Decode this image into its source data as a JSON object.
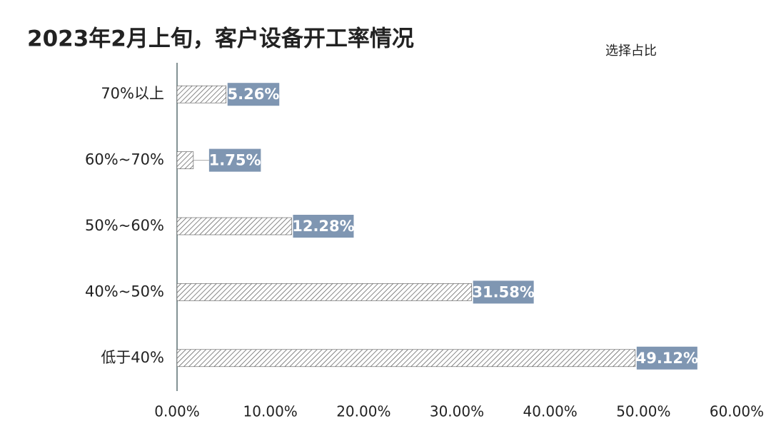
{
  "chart_data": {
    "type": "bar",
    "orientation": "horizontal",
    "title": "2023年2月上旬，客户设备开工率情况",
    "categories": [
      "70%以上",
      "60%~70%",
      "50%~60%",
      "40%~50%",
      "低于40%"
    ],
    "series": [
      {
        "name": "选择占比",
        "color": "#555555",
        "label_color": "#7f96b2",
        "values": [
          5.26,
          1.75,
          12.28,
          31.58,
          49.12
        ],
        "value_labels": [
          "5.26%",
          "1.75%",
          "12.28%",
          "31.58%",
          "49.12%"
        ]
      }
    ],
    "xlim": [
      0,
      60
    ],
    "xticks": [
      {
        "value": 0,
        "label": "0.00%"
      },
      {
        "value": 10,
        "label": "10.00%"
      },
      {
        "value": 20,
        "label": "20.00%"
      },
      {
        "value": 30,
        "label": "30.00%"
      },
      {
        "value": 40,
        "label": "40.00%"
      },
      {
        "value": 50,
        "label": "50.00%"
      },
      {
        "value": 60,
        "label": "60.00%"
      }
    ],
    "grid": false
  }
}
